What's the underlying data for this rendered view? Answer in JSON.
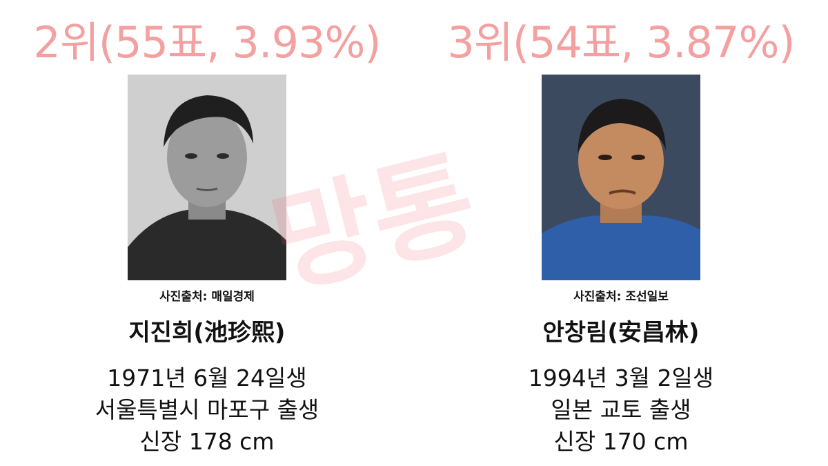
{
  "left": {
    "rank": "2위(55표, 3.93%)",
    "credit": "사진출처: 매일경제",
    "name": "지진희(池珍熙)",
    "birth": "1971년 6월 24일생",
    "birthplace": "서울특별시 마포구 출생",
    "height": "신장 178 cm"
  },
  "right": {
    "rank": "3위(54표, 3.87%)",
    "credit": "사진출처: 조선일보",
    "name": "안창림(安昌林)",
    "birth": "1994년 3월 2일생",
    "birthplace": "일본 교토 출생",
    "height": "신장 170 cm"
  },
  "watermark": {
    "text": "망통"
  },
  "colors": {
    "rank": "#f4a0a0",
    "watermark": "#f05a64",
    "text": "#111111"
  }
}
